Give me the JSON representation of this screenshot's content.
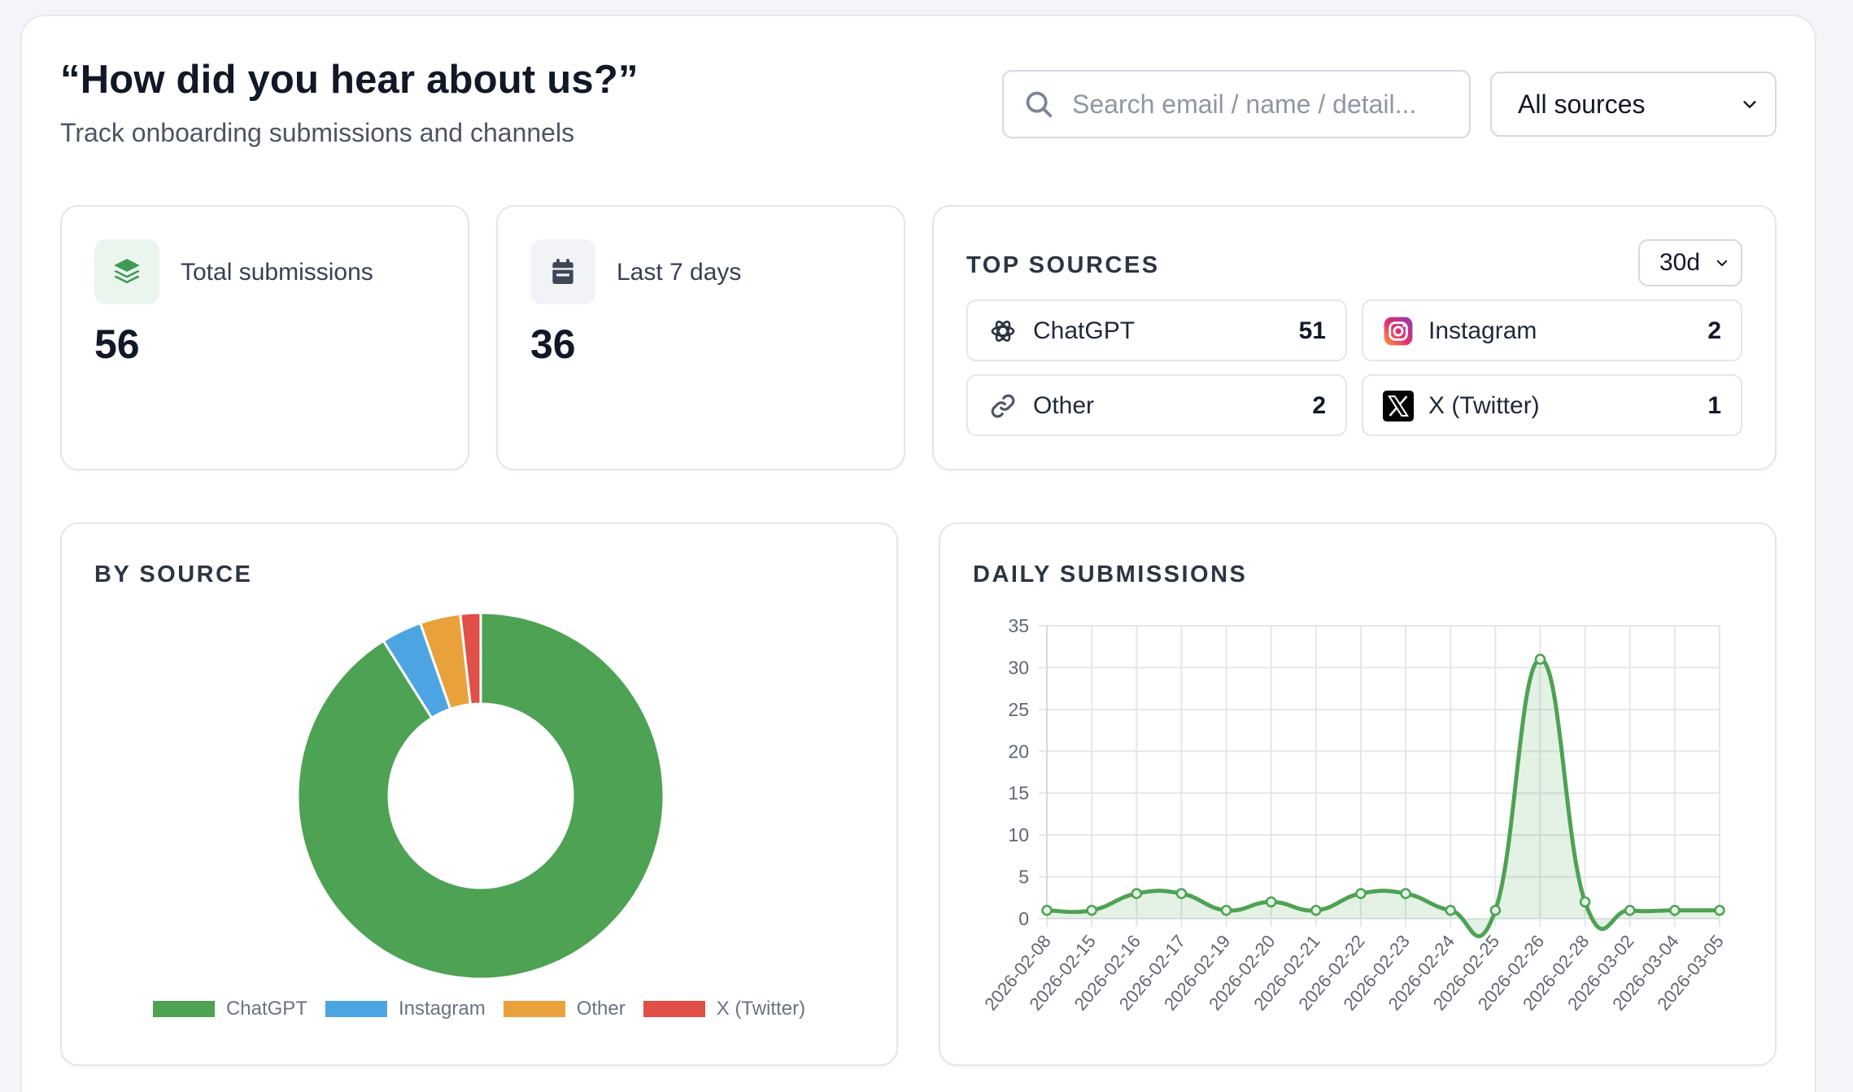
{
  "header": {
    "title": "“How did you hear about us?”",
    "subtitle": "Track onboarding submissions and channels"
  },
  "search": {
    "placeholder": "Search email / name / detail..."
  },
  "source_filter": {
    "selected": "All sources"
  },
  "stats": [
    {
      "label": "Total submissions",
      "value": "56",
      "icon": "layers-icon",
      "color": "#3c9a52"
    },
    {
      "label": "Last 7 days",
      "value": "36",
      "icon": "calendar-icon",
      "color": "#3e4756"
    }
  ],
  "top_sources": {
    "title": "TOP SOURCES",
    "range": "30d",
    "items": [
      {
        "name": "ChatGPT",
        "count": "51",
        "icon": "chatgpt-icon"
      },
      {
        "name": "Instagram",
        "count": "2",
        "icon": "instagram-icon"
      },
      {
        "name": "Other",
        "count": "2",
        "icon": "link-icon"
      },
      {
        "name": "X (Twitter)",
        "count": "1",
        "icon": "x-twitter-icon"
      }
    ]
  },
  "by_source": {
    "title": "BY SOURCE"
  },
  "daily": {
    "title": "DAILY SUBMISSIONS"
  },
  "chart_data": [
    {
      "type": "pie",
      "style": "donut",
      "categories": [
        "ChatGPT",
        "Instagram",
        "Other",
        "X (Twitter)"
      ],
      "values": [
        51,
        2,
        2,
        1
      ],
      "colors": [
        "#4da253",
        "#4da4e3",
        "#e9a23b",
        "#e05049"
      ],
      "legend": "bottom"
    },
    {
      "type": "line",
      "x": [
        "2026-02-08",
        "2026-02-15",
        "2026-02-16",
        "2026-02-17",
        "2026-02-19",
        "2026-02-20",
        "2026-02-21",
        "2026-02-22",
        "2026-02-23",
        "2026-02-24",
        "2026-02-25",
        "2026-02-26",
        "2026-02-28",
        "2026-03-02",
        "2026-03-04",
        "2026-03-05"
      ],
      "series": [
        {
          "values": [
            1,
            1,
            3,
            3,
            1,
            2,
            1,
            3,
            3,
            1,
            1,
            31,
            2,
            1,
            1,
            1
          ]
        }
      ],
      "ylim": [
        0,
        35
      ],
      "yticks": [
        0,
        5,
        10,
        15,
        20,
        25,
        30,
        35
      ],
      "grid": true,
      "fill": true,
      "color": "#4da253"
    }
  ]
}
